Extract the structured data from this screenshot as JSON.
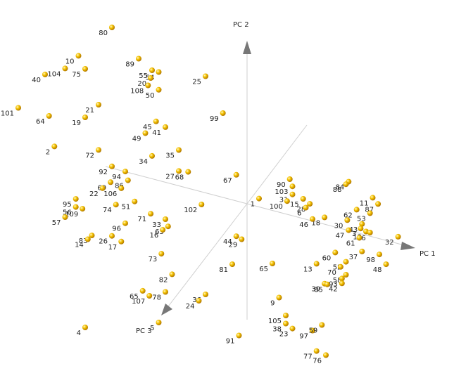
{
  "chart_data": {
    "type": "scatter3d",
    "axes": [
      "PC 1",
      "PC 2",
      "PC 3"
    ],
    "marker_color": "#e8a800",
    "points": [
      {
        "id": "80",
        "pc1": -0.95,
        "pc2": 0.95,
        "pc3": 0.1
      },
      {
        "id": "89",
        "pc1": -0.75,
        "pc2": 0.8,
        "pc3": 0.1
      },
      {
        "id": "55",
        "pc1": -0.65,
        "pc2": 0.75,
        "pc3": 0.1
      },
      {
        "id": "54",
        "pc1": -0.6,
        "pc2": 0.75,
        "pc3": 0.1
      },
      {
        "id": "20",
        "pc1": -0.66,
        "pc2": 0.7,
        "pc3": 0.1
      },
      {
        "id": "108",
        "pc1": -0.68,
        "pc2": 0.65,
        "pc3": 0.1
      },
      {
        "id": "50",
        "pc1": -0.6,
        "pc2": 0.64,
        "pc3": 0.1
      },
      {
        "id": "25",
        "pc1": -0.25,
        "pc2": 0.8,
        "pc3": 0.1
      },
      {
        "id": "99",
        "pc1": -0.12,
        "pc2": 0.6,
        "pc3": 0.1
      },
      {
        "id": "10",
        "pc1": -1.2,
        "pc2": 0.72,
        "pc3": 0.1
      },
      {
        "id": "104",
        "pc1": -1.3,
        "pc2": 0.62,
        "pc3": 0.1
      },
      {
        "id": "75",
        "pc1": -1.15,
        "pc2": 0.65,
        "pc3": 0.1
      },
      {
        "id": "40",
        "pc1": -1.45,
        "pc2": 0.55,
        "pc3": 0.1
      },
      {
        "id": "21",
        "pc1": -1.05,
        "pc2": 0.45,
        "pc3": 0.1
      },
      {
        "id": "45",
        "pc1": -0.62,
        "pc2": 0.44,
        "pc3": 0.1
      },
      {
        "id": "41",
        "pc1": -0.55,
        "pc2": 0.42,
        "pc3": 0.1
      },
      {
        "id": "49",
        "pc1": -0.7,
        "pc2": 0.35,
        "pc3": 0.1
      },
      {
        "id": "19",
        "pc1": -1.15,
        "pc2": 0.35,
        "pc3": 0.1
      },
      {
        "id": "101",
        "pc1": -1.65,
        "pc2": 0.3,
        "pc3": 0.1
      },
      {
        "id": "64",
        "pc1": -1.42,
        "pc2": 0.3,
        "pc3": 0.1
      },
      {
        "id": "35",
        "pc1": -0.45,
        "pc2": 0.3,
        "pc3": 0.1
      },
      {
        "id": "34",
        "pc1": -0.65,
        "pc2": 0.22,
        "pc3": 0.1
      },
      {
        "id": "27",
        "pc1": -0.45,
        "pc2": 0.17,
        "pc3": 0.1
      },
      {
        "id": "68",
        "pc1": -0.38,
        "pc2": 0.18,
        "pc3": 0.1
      },
      {
        "id": "72",
        "pc1": -1.05,
        "pc2": 0.17,
        "pc3": 0.1
      },
      {
        "id": "2",
        "pc1": -1.38,
        "pc2": 0.12,
        "pc3": 0.1
      },
      {
        "id": "92",
        "pc1": -0.95,
        "pc2": 0.09,
        "pc3": 0.1
      },
      {
        "id": "94",
        "pc1": -0.85,
        "pc2": 0.08,
        "pc3": 0.1
      },
      {
        "id": "86",
        "pc1": -0.83,
        "pc2": 0.03,
        "pc3": 0.1
      },
      {
        "id": "69",
        "pc1": -0.96,
        "pc2": -0.01,
        "pc3": 0.1
      },
      {
        "id": "106",
        "pc1": -0.88,
        "pc2": -0.03,
        "pc3": 0.1
      },
      {
        "id": "22",
        "pc1": -1.02,
        "pc2": -0.06,
        "pc3": 0.1
      },
      {
        "id": "51",
        "pc1": -0.78,
        "pc2": -0.09,
        "pc3": 0.1
      },
      {
        "id": "74",
        "pc1": -0.92,
        "pc2": -0.14,
        "pc3": 0.1
      },
      {
        "id": "71",
        "pc1": -0.66,
        "pc2": -0.14,
        "pc3": 0.1
      },
      {
        "id": "33",
        "pc1": -0.55,
        "pc2": -0.15,
        "pc3": 0.1
      },
      {
        "id": "63",
        "pc1": -0.53,
        "pc2": -0.19,
        "pc3": 0.1
      },
      {
        "id": "16",
        "pc1": -0.57,
        "pc2": -0.22,
        "pc3": 0.1
      },
      {
        "id": "102",
        "pc1": -0.28,
        "pc2": 0.0,
        "pc3": 0.1
      },
      {
        "id": "67",
        "pc1": -0.02,
        "pc2": 0.24,
        "pc3": 0.1
      },
      {
        "id": "1",
        "pc1": 0.15,
        "pc2": 0.13,
        "pc3": 0.1
      },
      {
        "id": "44",
        "pc1": -0.02,
        "pc2": -0.14,
        "pc3": 0.1
      },
      {
        "id": "29",
        "pc1": 0.02,
        "pc2": -0.15,
        "pc3": 0.1
      },
      {
        "id": "95",
        "pc1": -1.22,
        "pc2": -0.17,
        "pc3": 0.1
      },
      {
        "id": "56",
        "pc1": -1.22,
        "pc2": -0.22,
        "pc3": 0.1
      },
      {
        "id": "109",
        "pc1": -1.17,
        "pc2": -0.22,
        "pc3": 0.1
      },
      {
        "id": "96",
        "pc1": -0.85,
        "pc2": -0.24,
        "pc3": 0.1
      },
      {
        "id": "57",
        "pc1": -1.3,
        "pc2": -0.3,
        "pc3": 0.1
      },
      {
        "id": "26",
        "pc1": -0.95,
        "pc2": -0.34,
        "pc3": 0.1
      },
      {
        "id": "17",
        "pc1": -0.88,
        "pc2": -0.36,
        "pc3": 0.1
      },
      {
        "id": "83",
        "pc1": -1.1,
        "pc2": -0.37,
        "pc3": 0.1
      },
      {
        "id": "14",
        "pc1": -1.13,
        "pc2": -0.4,
        "pc3": 0.1
      },
      {
        "id": "73",
        "pc1": -0.58,
        "pc2": -0.37,
        "pc3": 0.1
      },
      {
        "id": "81",
        "pc1": -0.05,
        "pc2": -0.32,
        "pc3": 0.1
      },
      {
        "id": "82",
        "pc1": -0.5,
        "pc2": -0.48,
        "pc3": 0.1
      },
      {
        "id": "36",
        "pc1": -0.25,
        "pc2": -0.55,
        "pc3": 0.1
      },
      {
        "id": "24",
        "pc1": -0.3,
        "pc2": -0.6,
        "pc3": 0.1
      },
      {
        "id": "78",
        "pc1": -0.55,
        "pc2": -0.6,
        "pc3": 0.1
      },
      {
        "id": "65",
        "pc1": -0.72,
        "pc2": -0.63,
        "pc3": 0.1
      },
      {
        "id": "107",
        "pc1": -0.67,
        "pc2": -0.65,
        "pc3": 0.1
      },
      {
        "id": "5",
        "pc1": -0.6,
        "pc2": -0.8,
        "pc3": 0.1
      },
      {
        "id": "4",
        "pc1": -1.15,
        "pc2": -0.95,
        "pc3": 0.1
      },
      {
        "id": "91",
        "pc1": 0.0,
        "pc2": -0.75,
        "pc3": 0.1
      },
      {
        "id": "9",
        "pc1": 0.3,
        "pc2": -0.45,
        "pc3": 0.1
      },
      {
        "id": "105",
        "pc1": 0.35,
        "pc2": -0.55,
        "pc3": 0.1
      },
      {
        "id": "38",
        "pc1": 0.35,
        "pc2": -0.6,
        "pc3": 0.1
      },
      {
        "id": "23",
        "pc1": 0.4,
        "pc2": -0.62,
        "pc3": 0.1
      },
      {
        "id": "97",
        "pc1": 0.55,
        "pc2": -0.6,
        "pc3": 0.1
      },
      {
        "id": "59",
        "pc1": 0.62,
        "pc2": -0.55,
        "pc3": 0.1
      },
      {
        "id": "77",
        "pc1": 0.58,
        "pc2": -0.72,
        "pc3": 0.1
      },
      {
        "id": "76",
        "pc1": 0.65,
        "pc2": -0.73,
        "pc3": 0.1
      },
      {
        "id": "65b",
        "pc1": 0.25,
        "pc2": -0.25,
        "pc3": 0.1
      },
      {
        "id": "13",
        "pc1": 0.58,
        "pc2": -0.18,
        "pc3": 0.1
      },
      {
        "id": "60",
        "pc1": 0.72,
        "pc2": -0.08,
        "pc3": 0.1
      },
      {
        "id": "52",
        "pc1": 0.8,
        "pc2": -0.12,
        "pc3": 0.1
      },
      {
        "id": "70",
        "pc1": 0.76,
        "pc2": -0.16,
        "pc3": 0.1
      },
      {
        "id": "58",
        "pc1": 0.8,
        "pc2": -0.2,
        "pc3": 0.1
      },
      {
        "id": "93",
        "pc1": 0.77,
        "pc2": -0.23,
        "pc3": 0.1
      },
      {
        "id": "42",
        "pc1": 0.77,
        "pc2": -0.26,
        "pc3": 0.1
      },
      {
        "id": "39",
        "pc1": 0.64,
        "pc2": -0.29,
        "pc3": 0.1
      },
      {
        "id": "85",
        "pc1": 0.66,
        "pc2": -0.29,
        "pc3": 0.1
      },
      {
        "id": "37",
        "pc1": 0.92,
        "pc2": -0.03,
        "pc3": 0.1
      },
      {
        "id": "98",
        "pc1": 1.05,
        "pc2": -0.02,
        "pc3": 0.1
      },
      {
        "id": "48",
        "pc1": 1.1,
        "pc2": -0.07,
        "pc3": 0.1
      },
      {
        "id": "84",
        "pc1": 0.82,
        "pc2": 0.38,
        "pc3": 0.1
      },
      {
        "id": "88",
        "pc1": 0.8,
        "pc2": 0.36,
        "pc3": 0.1
      },
      {
        "id": "90",
        "pc1": 0.38,
        "pc2": 0.3,
        "pc3": 0.1
      },
      {
        "id": "103",
        "pc1": 0.4,
        "pc2": 0.26,
        "pc3": 0.1
      },
      {
        "id": "31",
        "pc1": 0.4,
        "pc2": 0.21,
        "pc3": 0.1
      },
      {
        "id": "15",
        "pc1": 0.48,
        "pc2": 0.2,
        "pc3": 0.1
      },
      {
        "id": "100",
        "pc1": 0.36,
        "pc2": 0.16,
        "pc3": 0.1
      },
      {
        "id": "28",
        "pc1": 0.53,
        "pc2": 0.18,
        "pc3": 0.1
      },
      {
        "id": "6",
        "pc1": 0.5,
        "pc2": 0.15,
        "pc3": 0.1
      },
      {
        "id": "18",
        "pc1": 0.64,
        "pc2": 0.12,
        "pc3": 0.1
      },
      {
        "id": "46",
        "pc1": 0.55,
        "pc2": 0.09,
        "pc3": 0.1
      },
      {
        "id": "11",
        "pc1": 1.0,
        "pc2": 0.32,
        "pc3": 0.1
      },
      {
        "id": "87",
        "pc1": 1.04,
        "pc2": 0.29,
        "pc3": 0.1
      },
      {
        "id": "62",
        "pc1": 0.88,
        "pc2": 0.22,
        "pc3": 0.1
      },
      {
        "id": "53",
        "pc1": 0.98,
        "pc2": 0.22,
        "pc3": 0.1
      },
      {
        "id": "30",
        "pc1": 0.81,
        "pc2": 0.14,
        "pc3": 0.1
      },
      {
        "id": "43",
        "pc1": 0.92,
        "pc2": 0.14,
        "pc3": 0.1
      },
      {
        "id": "3",
        "pc1": 0.91,
        "pc2": 0.11,
        "pc3": 0.1
      },
      {
        "id": "12",
        "pc1": 0.95,
        "pc2": 0.1,
        "pc3": 0.1
      },
      {
        "id": "66",
        "pc1": 0.98,
        "pc2": 0.1,
        "pc3": 0.1
      },
      {
        "id": "32",
        "pc1": 1.19,
        "pc2": 0.12,
        "pc3": 0.1
      },
      {
        "id": "47",
        "pc1": 0.82,
        "pc2": 0.08,
        "pc3": 0.1
      },
      {
        "id": "61",
        "pc1": 0.9,
        "pc2": 0.05,
        "pc3": 0.1
      }
    ]
  }
}
